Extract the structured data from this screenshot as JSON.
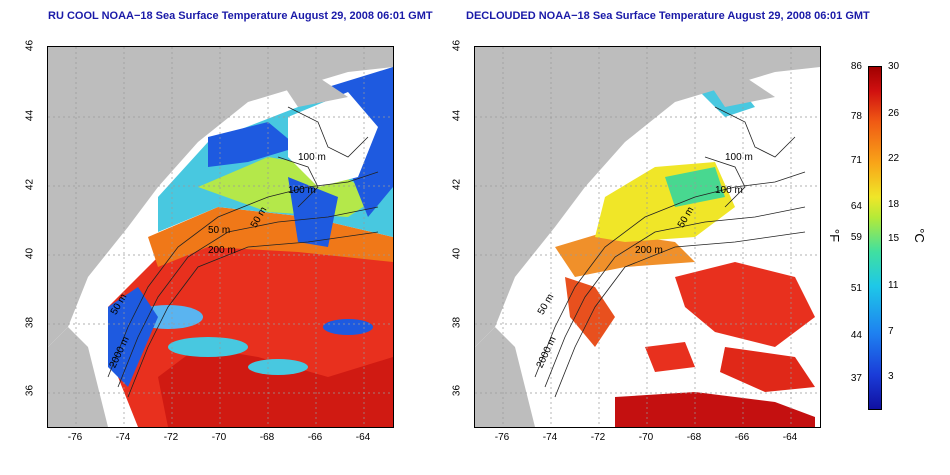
{
  "titles": {
    "left": "RU COOL NOAA−18 Sea Surface Temperature August 29, 2008 06:01 GMT",
    "right": "DECLOUDED NOAA−18 Sea Surface Temperature August 29, 2008 06:01 GMT"
  },
  "axes": {
    "lat_ticks": [
      "46",
      "44",
      "42",
      "40",
      "38",
      "36"
    ],
    "lon_ticks": [
      "-76",
      "-74",
      "-72",
      "-70",
      "-68",
      "-66",
      "-64"
    ]
  },
  "contours": {
    "left": [
      "100 m",
      "100 m",
      "50 m",
      "50 m",
      "200 m",
      "50 m",
      "2000 m"
    ],
    "right": [
      "100 m",
      "100 m",
      "50 m",
      "200 m",
      "50 m",
      "2000 m"
    ]
  },
  "colorbar": {
    "fahrenheit_ticks": [
      "86",
      "78",
      "71",
      "64",
      "59",
      "51",
      "44",
      "37"
    ],
    "celsius_ticks": [
      "30",
      "26",
      "22",
      "18",
      "15",
      "11",
      "7",
      "3"
    ],
    "unit_f": "°F",
    "unit_c": "°C"
  },
  "colors": {
    "land": "#bdbdbd",
    "warm": "#e8301e",
    "hot": "#c41010",
    "cool": "#1e5ae0",
    "mid": "#48c8e0",
    "green": "#b4e84a",
    "title": "#1a1aa8"
  }
}
